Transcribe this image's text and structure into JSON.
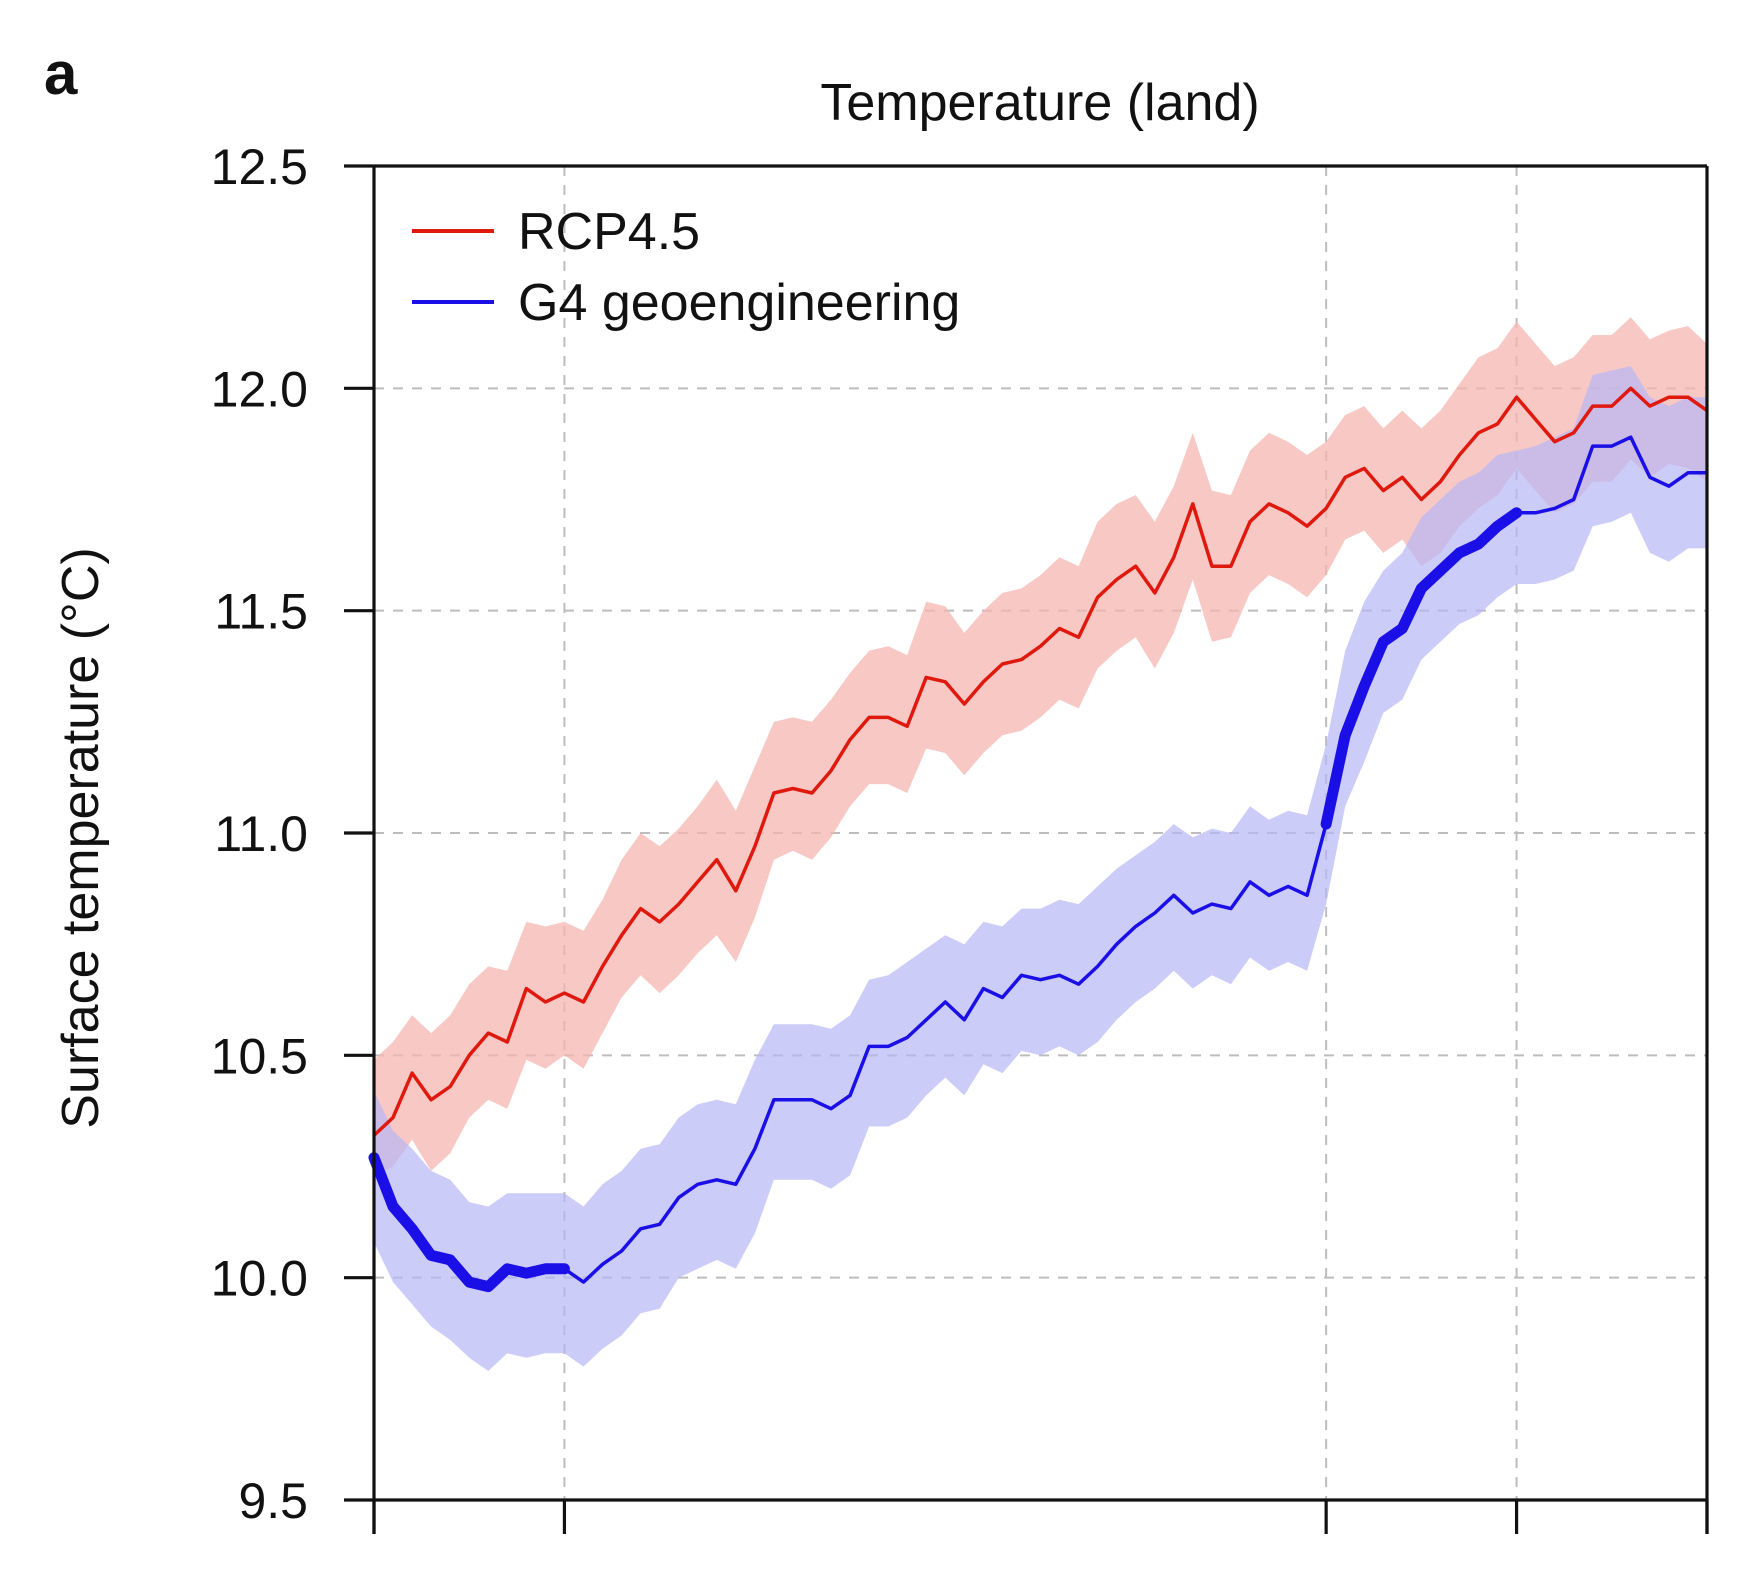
{
  "panel_label": "a",
  "chart_data": {
    "type": "line",
    "title": "Temperature (land)",
    "ylabel": "Surface temperature (°C)",
    "xlabel": "",
    "ylim": [
      9.5,
      12.5
    ],
    "yticks": [
      9.5,
      10.0,
      10.5,
      11.0,
      11.5,
      12.0,
      12.5
    ],
    "ytick_labels": [
      "9.5",
      "10.0",
      "10.5",
      "11.0",
      "11.5",
      "12.0",
      "12.5"
    ],
    "xlim": [
      2020,
      2090
    ],
    "xticks": [
      2020,
      2030,
      2070,
      2080,
      2090
    ],
    "vertical_gridlines_at": [
      2030,
      2070,
      2080
    ],
    "grid": true,
    "legend_position": "top-left",
    "colors": {
      "rcp_line": "#e0190f",
      "rcp_band": "#f4b6b0",
      "g4_line": "#1a0fe6",
      "g4_band": "#b6b6f6"
    },
    "x": [
      2020,
      2021,
      2022,
      2023,
      2024,
      2025,
      2026,
      2027,
      2028,
      2029,
      2030,
      2031,
      2032,
      2033,
      2034,
      2035,
      2036,
      2037,
      2038,
      2039,
      2040,
      2041,
      2042,
      2043,
      2044,
      2045,
      2046,
      2047,
      2048,
      2049,
      2050,
      2051,
      2052,
      2053,
      2054,
      2055,
      2056,
      2057,
      2058,
      2059,
      2060,
      2061,
      2062,
      2063,
      2064,
      2065,
      2066,
      2067,
      2068,
      2069,
      2070,
      2071,
      2072,
      2073,
      2074,
      2075,
      2076,
      2077,
      2078,
      2079,
      2080,
      2081,
      2082,
      2083,
      2084,
      2085,
      2086,
      2087,
      2088,
      2089,
      2090
    ],
    "series": [
      {
        "name": "RCP4.5",
        "values": [
          10.32,
          10.36,
          10.46,
          10.4,
          10.43,
          10.5,
          10.55,
          10.53,
          10.65,
          10.62,
          10.64,
          10.62,
          10.7,
          10.77,
          10.83,
          10.8,
          10.84,
          10.89,
          10.94,
          10.87,
          10.97,
          11.09,
          11.1,
          11.09,
          11.14,
          11.21,
          11.26,
          11.26,
          11.24,
          11.35,
          11.34,
          11.29,
          11.34,
          11.38,
          11.39,
          11.42,
          11.46,
          11.44,
          11.53,
          11.57,
          11.6,
          11.54,
          11.62,
          11.74,
          11.6,
          11.6,
          11.7,
          11.74,
          11.72,
          11.69,
          11.73,
          11.8,
          11.82,
          11.77,
          11.8,
          11.75,
          11.79,
          11.85,
          11.9,
          11.92,
          11.98,
          11.93,
          11.88,
          11.9,
          11.96,
          11.96,
          12.0,
          11.96,
          11.98,
          11.98,
          11.95
        ],
        "upper": [
          10.49,
          10.53,
          10.59,
          10.55,
          10.59,
          10.66,
          10.7,
          10.69,
          10.8,
          10.79,
          10.8,
          10.78,
          10.85,
          10.94,
          11.0,
          10.97,
          11.01,
          11.06,
          11.12,
          11.05,
          11.15,
          11.25,
          11.26,
          11.25,
          11.3,
          11.36,
          11.41,
          11.42,
          11.4,
          11.52,
          11.51,
          11.45,
          11.5,
          11.54,
          11.55,
          11.58,
          11.62,
          11.6,
          11.7,
          11.74,
          11.76,
          11.7,
          11.78,
          11.9,
          11.77,
          11.76,
          11.86,
          11.9,
          11.88,
          11.85,
          11.88,
          11.94,
          11.96,
          11.91,
          11.95,
          11.91,
          11.95,
          12.01,
          12.07,
          12.09,
          12.15,
          12.1,
          12.05,
          12.07,
          12.12,
          12.12,
          12.16,
          12.11,
          12.13,
          12.14,
          12.1
        ],
        "lower": [
          10.23,
          10.25,
          10.31,
          10.24,
          10.28,
          10.36,
          10.4,
          10.38,
          10.49,
          10.47,
          10.5,
          10.47,
          10.55,
          10.63,
          10.68,
          10.64,
          10.68,
          10.73,
          10.77,
          10.71,
          10.81,
          10.94,
          10.96,
          10.94,
          10.99,
          11.06,
          11.11,
          11.11,
          11.09,
          11.19,
          11.18,
          11.13,
          11.18,
          11.22,
          11.23,
          11.26,
          11.3,
          11.28,
          11.37,
          11.41,
          11.44,
          11.37,
          11.45,
          11.57,
          11.43,
          11.44,
          11.54,
          11.58,
          11.56,
          11.53,
          11.58,
          11.66,
          11.68,
          11.63,
          11.66,
          11.6,
          11.63,
          11.69,
          11.73,
          11.76,
          11.82,
          11.77,
          11.72,
          11.74,
          11.79,
          11.79,
          11.84,
          11.8,
          11.83,
          11.82,
          11.79
        ]
      },
      {
        "name": "G4 geoengineering",
        "values": [
          10.27,
          10.16,
          10.11,
          10.05,
          10.04,
          9.99,
          9.98,
          10.02,
          10.01,
          10.02,
          10.02,
          9.99,
          10.03,
          10.06,
          10.11,
          10.12,
          10.18,
          10.21,
          10.22,
          10.21,
          10.29,
          10.4,
          10.4,
          10.4,
          10.38,
          10.41,
          10.52,
          10.52,
          10.54,
          10.58,
          10.62,
          10.58,
          10.65,
          10.63,
          10.68,
          10.67,
          10.68,
          10.66,
          10.7,
          10.75,
          10.79,
          10.82,
          10.86,
          10.82,
          10.84,
          10.83,
          10.89,
          10.86,
          10.88,
          10.86,
          11.02,
          11.22,
          11.33,
          11.43,
          11.46,
          11.55,
          11.59,
          11.63,
          11.65,
          11.69,
          11.72,
          11.72,
          11.73,
          11.75,
          11.87,
          11.87,
          11.89,
          11.8,
          11.78,
          11.81,
          11.81
        ],
        "upper": [
          10.42,
          10.33,
          10.29,
          10.24,
          10.22,
          10.17,
          10.16,
          10.19,
          10.19,
          10.19,
          10.19,
          10.16,
          10.21,
          10.24,
          10.29,
          10.3,
          10.36,
          10.39,
          10.4,
          10.39,
          10.49,
          10.57,
          10.57,
          10.57,
          10.56,
          10.59,
          10.67,
          10.68,
          10.71,
          10.74,
          10.77,
          10.75,
          10.8,
          10.79,
          10.83,
          10.83,
          10.85,
          10.84,
          10.88,
          10.92,
          10.95,
          10.98,
          11.02,
          10.99,
          11.01,
          11.0,
          11.06,
          11.03,
          11.05,
          11.04,
          11.2,
          11.41,
          11.52,
          11.59,
          11.63,
          11.71,
          11.75,
          11.79,
          11.81,
          11.85,
          11.86,
          11.87,
          11.89,
          11.91,
          12.03,
          12.04,
          12.05,
          11.98,
          11.96,
          11.98,
          11.98
        ],
        "lower": [
          10.08,
          9.99,
          9.94,
          9.89,
          9.86,
          9.82,
          9.79,
          9.83,
          9.82,
          9.83,
          9.83,
          9.8,
          9.84,
          9.87,
          9.92,
          9.93,
          10.0,
          10.02,
          10.04,
          10.02,
          10.1,
          10.22,
          10.22,
          10.22,
          10.2,
          10.23,
          10.34,
          10.34,
          10.36,
          10.41,
          10.45,
          10.41,
          10.48,
          10.46,
          10.51,
          10.5,
          10.52,
          10.5,
          10.53,
          10.58,
          10.62,
          10.65,
          10.69,
          10.65,
          10.68,
          10.66,
          10.72,
          10.69,
          10.71,
          10.69,
          10.84,
          11.06,
          11.16,
          11.27,
          11.3,
          11.39,
          11.43,
          11.47,
          11.49,
          11.53,
          11.56,
          11.56,
          11.57,
          11.59,
          11.69,
          11.7,
          11.72,
          11.63,
          11.61,
          11.64,
          11.64
        ]
      }
    ],
    "highlight_segments": [
      {
        "series": "G4 geoengineering",
        "x_range": [
          2020,
          2030
        ]
      },
      {
        "series": "G4 geoengineering",
        "x_range": [
          2070,
          2080
        ]
      }
    ]
  }
}
